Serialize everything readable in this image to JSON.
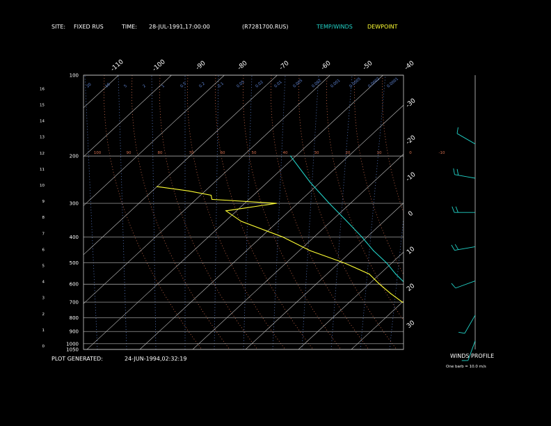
{
  "header": {
    "site_label": "SITE:",
    "site_value": "FIXED RUS",
    "time_label": "TIME:",
    "time_value": "28-JUL-1991,17:00:00",
    "file": "(R7281700.RUS)",
    "legend_temp": "TEMP/WINDS",
    "legend_dew": "DEWPOINT"
  },
  "footer": {
    "generated_label": "PLOT GENERATED:",
    "generated_value": "24-JUN-1994,02:32:19"
  },
  "winds_panel": {
    "title": "WINDS PROFILE",
    "note": "One barb = 10.0 m/s"
  },
  "colors": {
    "temp": "#22d3c8",
    "dew": "#ffff33",
    "isotherm": "#c8c8c8",
    "grid": "#bbbbbb",
    "mixing": "#5f86d8",
    "theta_e": "#d9714f",
    "background": "#000000"
  },
  "chart_data": {
    "type": "line",
    "left_axis_ticks": [
      "0",
      "1",
      "2",
      "3",
      "4",
      "5",
      "6",
      "7",
      "8",
      "9",
      "10",
      "11",
      "12",
      "13",
      "14",
      "15",
      "16"
    ],
    "pressure_levels": [
      {
        "p": 100,
        "label": "100"
      },
      {
        "p": 200,
        "label": "200"
      },
      {
        "p": 300,
        "label": "300"
      },
      {
        "p": 400,
        "label": "400"
      },
      {
        "p": 500,
        "label": "500"
      },
      {
        "p": 600,
        "label": "600"
      },
      {
        "p": 700,
        "label": "700"
      },
      {
        "p": 800,
        "label": "800"
      },
      {
        "p": 900,
        "label": "900"
      },
      {
        "p": 1000,
        "label": "1000"
      },
      {
        "p": 1050,
        "label": "1050"
      }
    ],
    "isotherm_labels": [
      "-110",
      "-100",
      "-90",
      "-80",
      "-70",
      "-60",
      "-50",
      "-40",
      "-30",
      "-20",
      "-10",
      "0",
      "10",
      "20",
      "30"
    ],
    "mixing_ratio_labels": [
      "20",
      "10",
      "5",
      "2",
      "1",
      "0.5",
      "0.2",
      "0.1",
      "0.05",
      "0.02",
      "0.01",
      "0.005",
      "0.002",
      "0.001",
      "0.0005",
      "0.0002",
      "0.0001"
    ],
    "theta_e_labels": [
      "100",
      "90",
      "80",
      "70",
      "60",
      "50",
      "40",
      "30",
      "20",
      "10",
      "0",
      "-10"
    ],
    "series": [
      {
        "name": "TEMP/WINDS",
        "points": [
          {
            "p": 1050,
            "t": 33.0
          },
          {
            "p": 1000,
            "t": 30.0
          },
          {
            "p": 950,
            "t": 25.0
          },
          {
            "p": 900,
            "t": 21.0
          },
          {
            "p": 850,
            "t": 17.0
          },
          {
            "p": 800,
            "t": 13.0
          },
          {
            "p": 750,
            "t": 9.0
          },
          {
            "p": 700,
            "t": 6.0
          },
          {
            "p": 650,
            "t": 1.0
          },
          {
            "p": 600,
            "t": -3.0
          },
          {
            "p": 550,
            "t": -7.0
          },
          {
            "p": 500,
            "t": -11.0
          },
          {
            "p": 450,
            "t": -16.0
          },
          {
            "p": 400,
            "t": -21.0
          },
          {
            "p": 350,
            "t": -27.0
          },
          {
            "p": 300,
            "t": -34.0
          },
          {
            "p": 250,
            "t": -42.0
          },
          {
            "p": 200,
            "t": -51.0
          }
        ]
      },
      {
        "name": "DEWPOINT",
        "points": [
          {
            "p": 1050,
            "t": 22.0
          },
          {
            "p": 1000,
            "t": 20.0
          },
          {
            "p": 950,
            "t": 16.0
          },
          {
            "p": 900,
            "t": 10.0
          },
          {
            "p": 850,
            "t": 12.0
          },
          {
            "p": 800,
            "t": 7.0
          },
          {
            "p": 750,
            "t": 8.0
          },
          {
            "p": 700,
            "t": 0.0
          },
          {
            "p": 650,
            "t": -4.0
          },
          {
            "p": 600,
            "t": -8.0
          },
          {
            "p": 550,
            "t": -12.0
          },
          {
            "p": 500,
            "t": -19.0
          },
          {
            "p": 450,
            "t": -28.0
          },
          {
            "p": 400,
            "t": -36.0
          },
          {
            "p": 350,
            "t": -47.0
          },
          {
            "p": 320,
            "t": -52.0
          },
          {
            "p": 300,
            "t": -44.0
          },
          {
            "p": 290,
            "t": -57.0
          },
          {
            "p": 280,
            "t": -58.0
          },
          {
            "p": 270,
            "t": -63.0
          },
          {
            "p": 260,
            "t": -70.0
          }
        ]
      }
    ],
    "wind_barbs": [
      {
        "z_km": 0.5,
        "dir_deg": 200,
        "speed_ms": 5
      },
      {
        "z_km": 2,
        "dir_deg": 210,
        "speed_ms": 8
      },
      {
        "z_km": 4,
        "dir_deg": 250,
        "speed_ms": 12
      },
      {
        "z_km": 6,
        "dir_deg": 260,
        "speed_ms": 18
      },
      {
        "z_km": 8,
        "dir_deg": 270,
        "speed_ms": 20
      },
      {
        "z_km": 10,
        "dir_deg": 280,
        "speed_ms": 15
      },
      {
        "z_km": 12,
        "dir_deg": 300,
        "speed_ms": 12
      }
    ]
  }
}
